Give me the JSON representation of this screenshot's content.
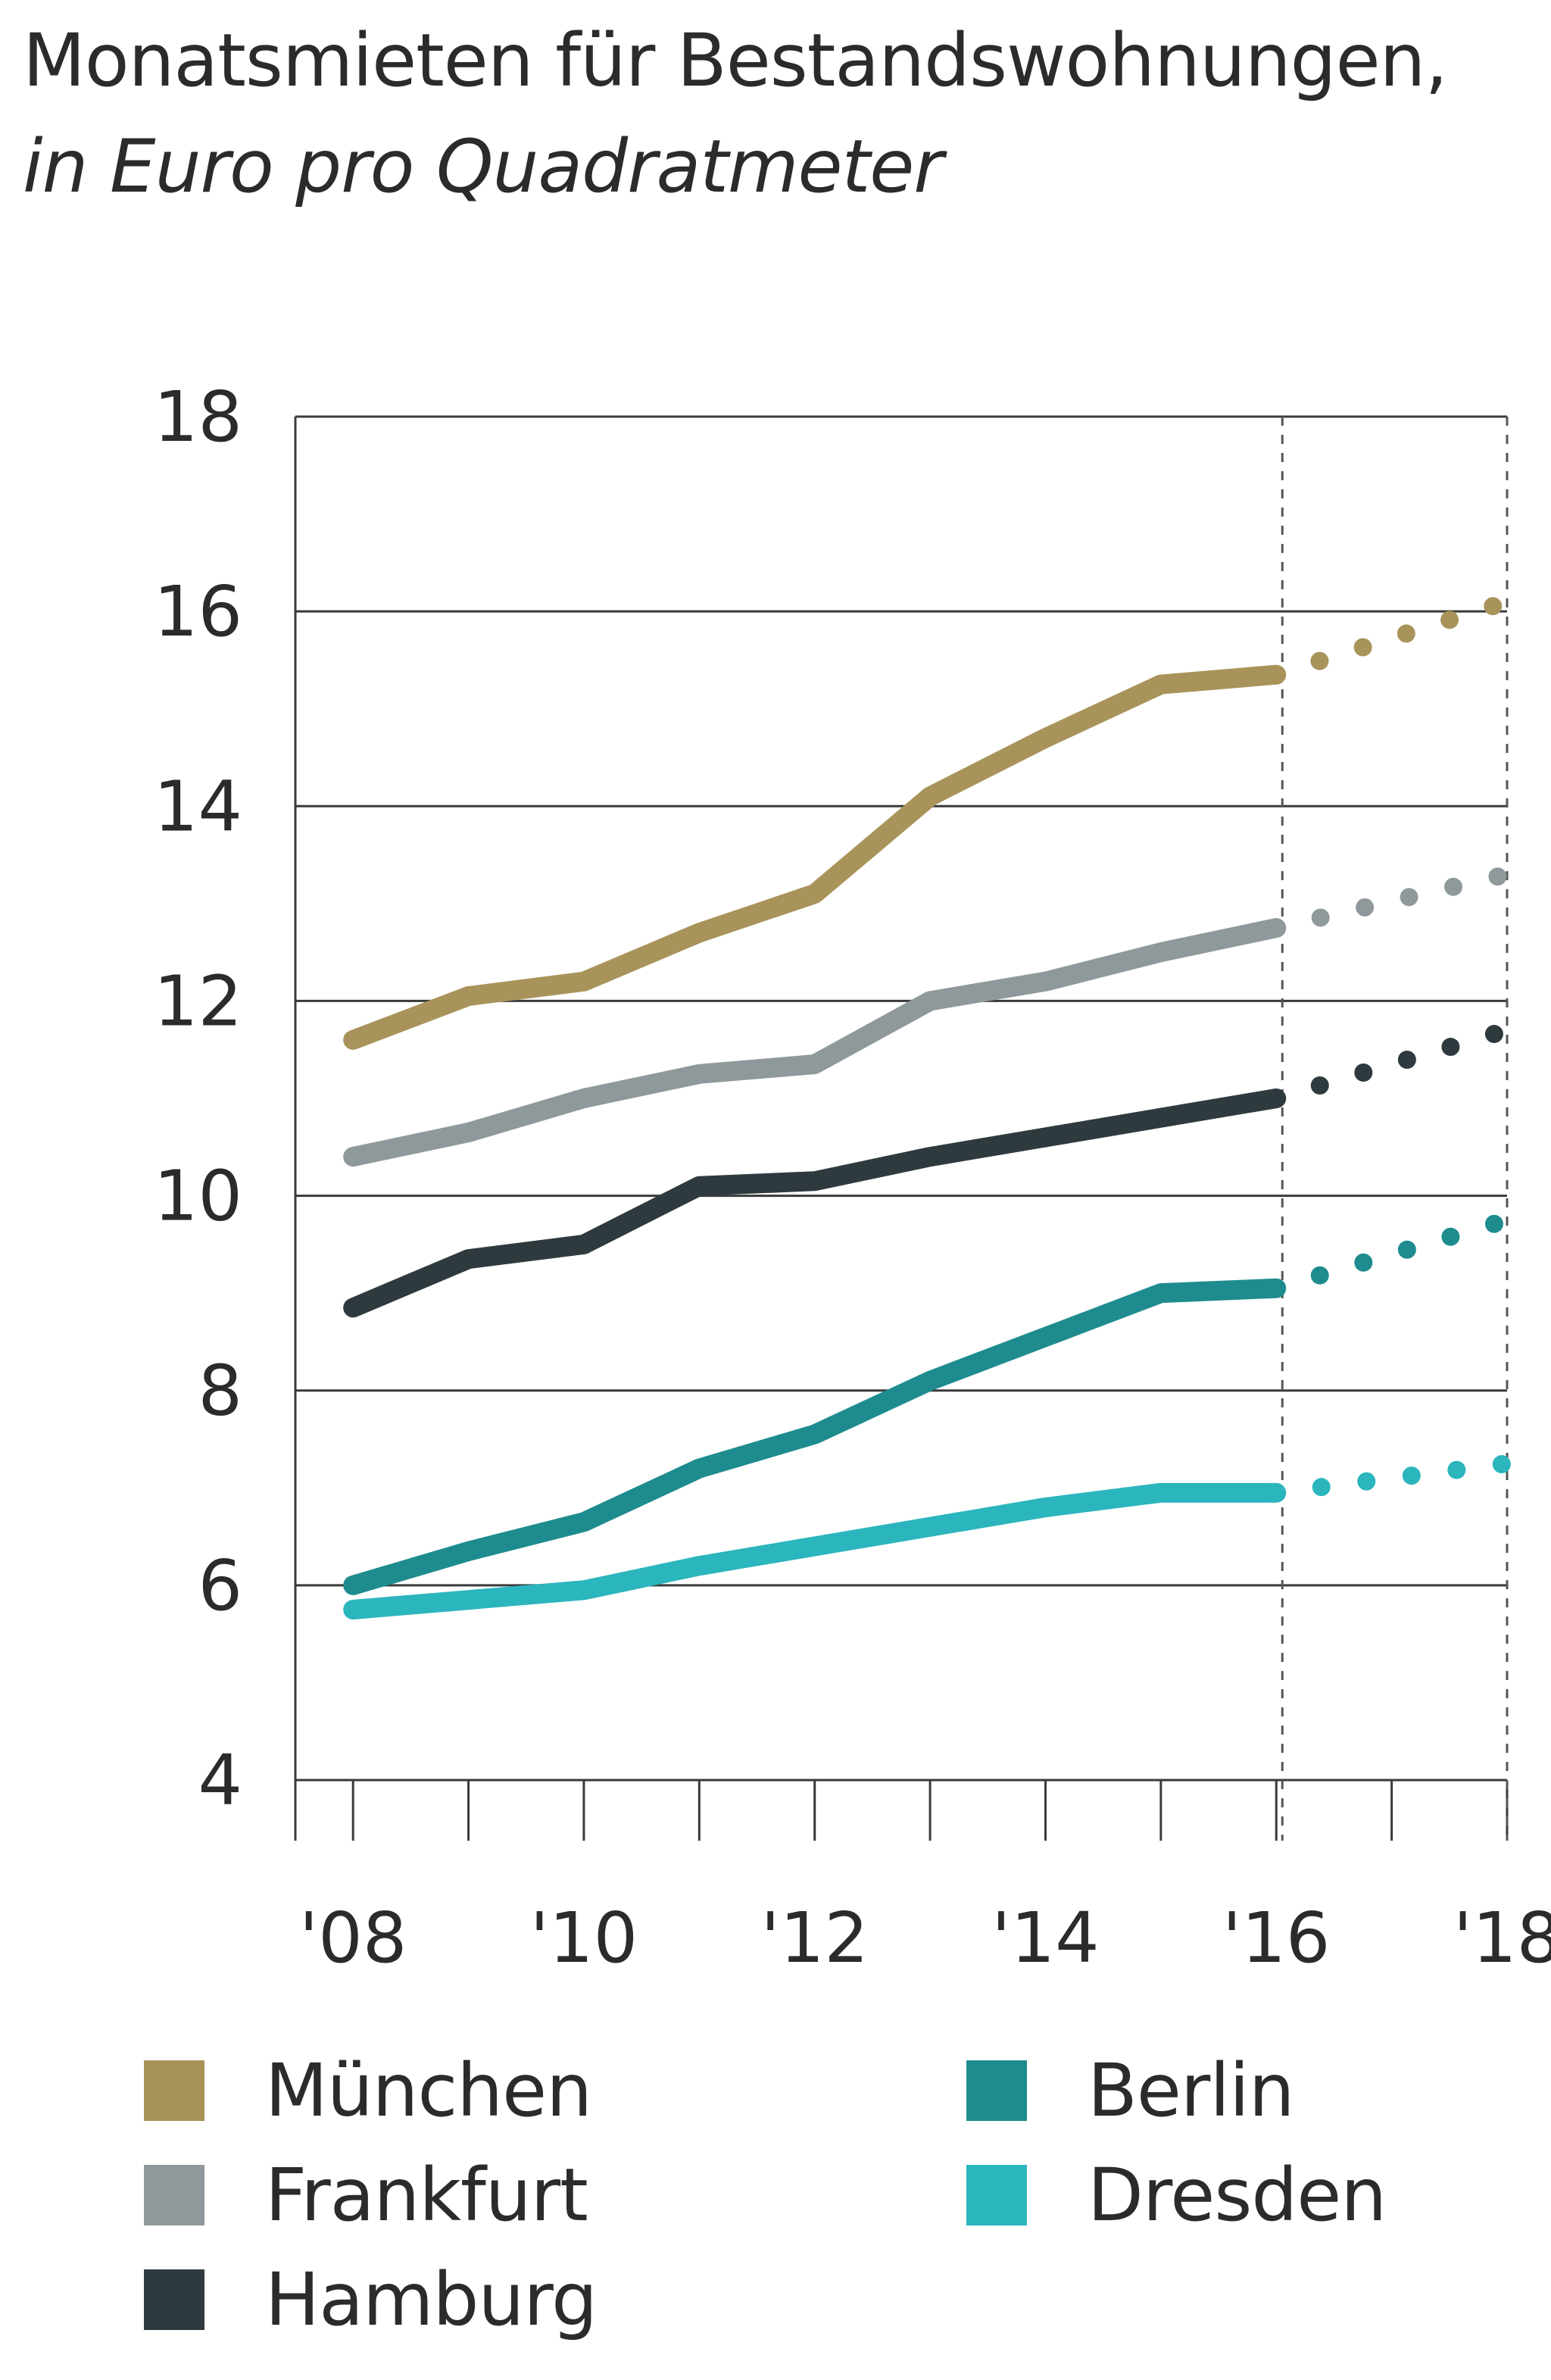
{
  "title": "Monatsmieten für Bestandswohnungen,",
  "subtitle": "in Euro pro Quadratmeter",
  "chart_data": {
    "type": "line",
    "title": "Monatsmieten für Bestandswohnungen,",
    "subtitle": "in Euro pro Quadratmeter",
    "xlabel": "",
    "ylabel": "",
    "x_tick_labels": [
      "'08",
      "'10",
      "'12",
      "'14",
      "'16",
      "'18"
    ],
    "x_ticks": [
      2008,
      2010,
      2012,
      2014,
      2016,
      2018
    ],
    "y_ticks": [
      4,
      6,
      8,
      10,
      12,
      14,
      16,
      18
    ],
    "xlim": [
      2008,
      2018
    ],
    "ylim": [
      4,
      18
    ],
    "grid": "horizontal",
    "forecast_start": 2016,
    "series": [
      {
        "name": "München",
        "color": "#a8935a",
        "x": [
          2008,
          2009,
          2010,
          2011,
          2012,
          2013,
          2014,
          2015,
          2016
        ],
        "values": [
          11.6,
          12.05,
          12.2,
          12.7,
          13.1,
          14.1,
          14.7,
          15.25,
          15.35
        ],
        "forecast_x": [
          2016,
          2018
        ],
        "forecast_values": [
          15.35,
          16.1
        ]
      },
      {
        "name": "Frankfurt",
        "color": "#8f999b",
        "x": [
          2008,
          2009,
          2010,
          2011,
          2012,
          2013,
          2014,
          2015,
          2016
        ],
        "values": [
          10.4,
          10.65,
          11.0,
          11.25,
          11.35,
          12.0,
          12.2,
          12.5,
          12.75
        ],
        "forecast_x": [
          2016,
          2018
        ],
        "forecast_values": [
          12.75,
          13.3
        ]
      },
      {
        "name": "Hamburg",
        "color": "#2e3a3e",
        "x": [
          2008,
          2009,
          2010,
          2011,
          2012,
          2013,
          2014,
          2015,
          2016
        ],
        "values": [
          8.85,
          9.35,
          9.5,
          10.1,
          10.15,
          10.4,
          10.6,
          10.8,
          11.0
        ],
        "forecast_x": [
          2016,
          2018
        ],
        "forecast_values": [
          11.0,
          11.7
        ]
      },
      {
        "name": "Berlin",
        "color": "#1e8c8e",
        "x": [
          2008,
          2009,
          2010,
          2011,
          2012,
          2013,
          2014,
          2015,
          2016
        ],
        "values": [
          6.0,
          6.35,
          6.65,
          7.2,
          7.55,
          8.1,
          8.55,
          9.0,
          9.05
        ],
        "forecast_x": [
          2016,
          2018
        ],
        "forecast_values": [
          9.05,
          9.75
        ]
      },
      {
        "name": "Dresden",
        "color": "#2bb5bd",
        "x": [
          2008,
          2009,
          2010,
          2011,
          2012,
          2013,
          2014,
          2015,
          2016
        ],
        "values": [
          5.75,
          5.85,
          5.95,
          6.2,
          6.4,
          6.6,
          6.8,
          6.95,
          6.95
        ],
        "forecast_x": [
          2016,
          2018
        ],
        "forecast_values": [
          6.95,
          7.25
        ]
      }
    ],
    "legend_position": "bottom"
  },
  "legend": {
    "items": [
      {
        "label": "München",
        "color": "#a8935a"
      },
      {
        "label": "Frankfurt",
        "color": "#8f999b"
      },
      {
        "label": "Hamburg",
        "color": "#2e3a3e"
      },
      {
        "label": "Berlin",
        "color": "#1e8c8e"
      },
      {
        "label": "Dresden",
        "color": "#2bb5bd"
      }
    ]
  }
}
